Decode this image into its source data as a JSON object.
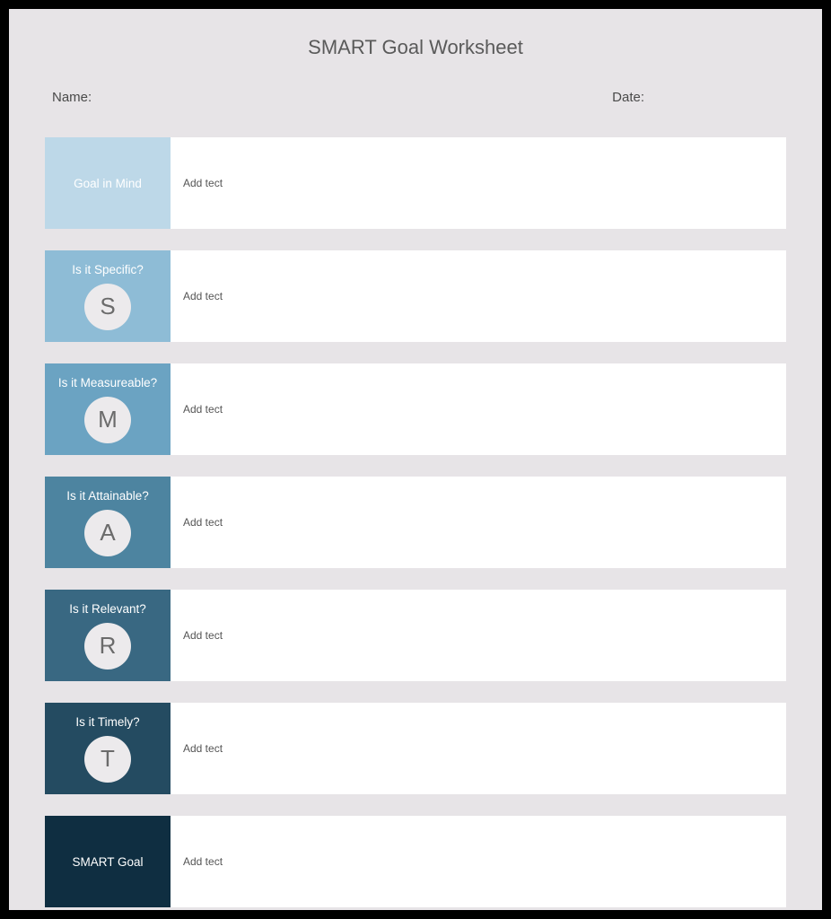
{
  "title": "SMART Goal Worksheet",
  "meta": {
    "name_label": "Name:",
    "date_label": "Date:"
  },
  "placeholder_text": "Add tect",
  "background_color": "#e7e4e7",
  "input_bg": "#ffffff",
  "circle_bg": "#eceaec",
  "circle_text_color": "#6b6b6b",
  "rows": [
    {
      "label": "Goal in Mind",
      "letter": "",
      "color": "#bdd8e8",
      "has_letter": false
    },
    {
      "label": "Is it Specific?",
      "letter": "S",
      "color": "#8ebcd6",
      "has_letter": true
    },
    {
      "label": "Is it Measureable?",
      "letter": "M",
      "color": "#6ba3c2",
      "has_letter": true
    },
    {
      "label": "Is it Attainable?",
      "letter": "A",
      "color": "#4d84a0",
      "has_letter": true
    },
    {
      "label": "Is it Relevant?",
      "letter": "R",
      "color": "#396882",
      "has_letter": true
    },
    {
      "label": "Is it Timely?",
      "letter": "T",
      "color": "#244b61",
      "has_letter": true
    },
    {
      "label": "SMART Goal",
      "letter": "",
      "color": "#0f2e41",
      "has_letter": false
    }
  ]
}
